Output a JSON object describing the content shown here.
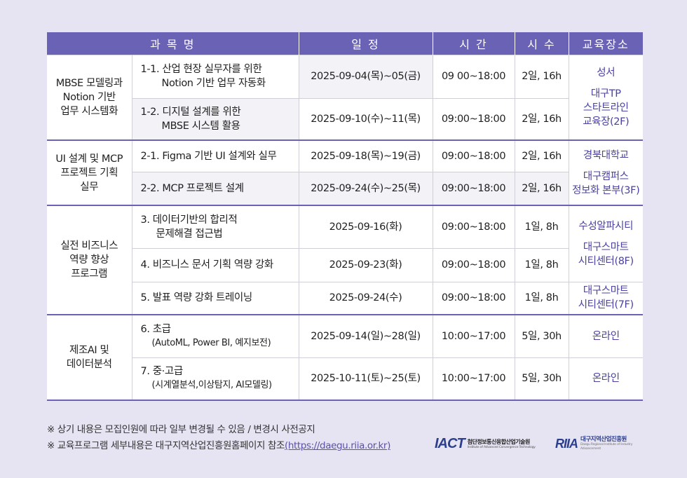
{
  "header": {
    "course": "과 목 명",
    "schedule": "일 정",
    "time": "시 간",
    "hours": "시 수",
    "location": "교육장소"
  },
  "groups": [
    {
      "name": "MBSE 모델링과\nNotion 기반\n업무 시스템화",
      "rows": [
        {
          "line1": "1-1. 산업 현장 실무자를 위한",
          "line2": "Notion 기반 업무 자동화",
          "date": "2025-09-04(목)~05(금)",
          "time": "09 00~18:00",
          "hours": "2일, 16h"
        },
        {
          "line1": "1-2. 디지털 설계를 위한",
          "line2": "MBSE 시스템 활용",
          "date": "2025-09-10(수)~11(목)",
          "time": "09:00~18:00",
          "hours": "2일, 16h"
        }
      ],
      "location": {
        "line1": "성서",
        "line2": "대구TP",
        "line3": "스타트라인",
        "line4": "교육장(2F)"
      }
    },
    {
      "name": "UI 설계 및 MCP\n프로젝트 기획\n실무",
      "rows": [
        {
          "line1": "2-1. Figma 기반 UI 설계와 실무",
          "line2": "",
          "date": "2025-09-18(목)~19(금)",
          "time": "09:00~18:00",
          "hours": "2일, 16h"
        },
        {
          "line1": "2-2. MCP 프로젝트 설계",
          "line2": "",
          "date": "2025-09-24(수)~25(목)",
          "time": "09:00~18:00",
          "hours": "2일, 16h"
        }
      ],
      "location": {
        "line1": "경북대학교",
        "line2": "대구캠퍼스",
        "line3": "정보화 본부(3F)"
      }
    },
    {
      "name": "실전 비즈니스\n역량 향상\n프로그램",
      "rows": [
        {
          "line1": "3. 데이터기반의 합리적",
          "line2": "문제해결 접근법",
          "date": "2025-09-16(화)",
          "time": "09:00~18:00",
          "hours": "1일, 8h"
        },
        {
          "line1": "4. 비즈니스 문서 기획 역량 강화",
          "line2": "",
          "date": "2025-09-23(화)",
          "time": "09:00~18:00",
          "hours": "1일, 8h"
        },
        {
          "line1": "5. 발표 역량 강화 트레이닝",
          "line2": "",
          "date": "2025-09-24(수)",
          "time": "09:00~18:00",
          "hours": "1일, 8h"
        }
      ],
      "location_a": {
        "line1": "수성알파시티",
        "line2": "대구스마트",
        "line3": "시티센터(8F)"
      },
      "location_b": {
        "line1": "대구스마트",
        "line2": "시티센터(7F)"
      }
    },
    {
      "name": "제조AI 및\n데이터분석",
      "rows": [
        {
          "line1": "6. 초급",
          "line2": "(AutoML, Power BI, 예지보전)",
          "date": "2025-09-14(일)~28(일)",
          "time": "10:00~17:00",
          "hours": "5일, 30h",
          "location": "온라인"
        },
        {
          "line1": "7. 중·고급",
          "line2": "(시계열분석,이상탐지, AI모델링)",
          "date": "2025-10-11(토)~25(토)",
          "time": "10:00~17:00",
          "hours": "5일, 30h",
          "location": "온라인"
        }
      ]
    }
  ],
  "notes": {
    "note1": "※ 상기 내용은 모집인원에 따라 일부 변경될 수 있음 / 변경시 사전공지",
    "note2_prefix": "※ 교육프로그램 세부내용은 대구지역산업진흥원홈페이지 참조",
    "note2_link": "(https://daegu.riia.or.kr)"
  },
  "logos": {
    "iact_mark": "IACT",
    "iact_name": "첨단정보통신융합산업기술원",
    "iact_en": "Institute of Advanced Convergence Technology",
    "riia_mark": "RIIA",
    "riia_name": "대구지역산업진흥원",
    "riia_en": "Daegu Regional Institute of Industry Advancement"
  },
  "colors": {
    "header_bg": "#6a62b4",
    "location_text": "#4a41a2",
    "page_bg": "#e6e3f2"
  }
}
